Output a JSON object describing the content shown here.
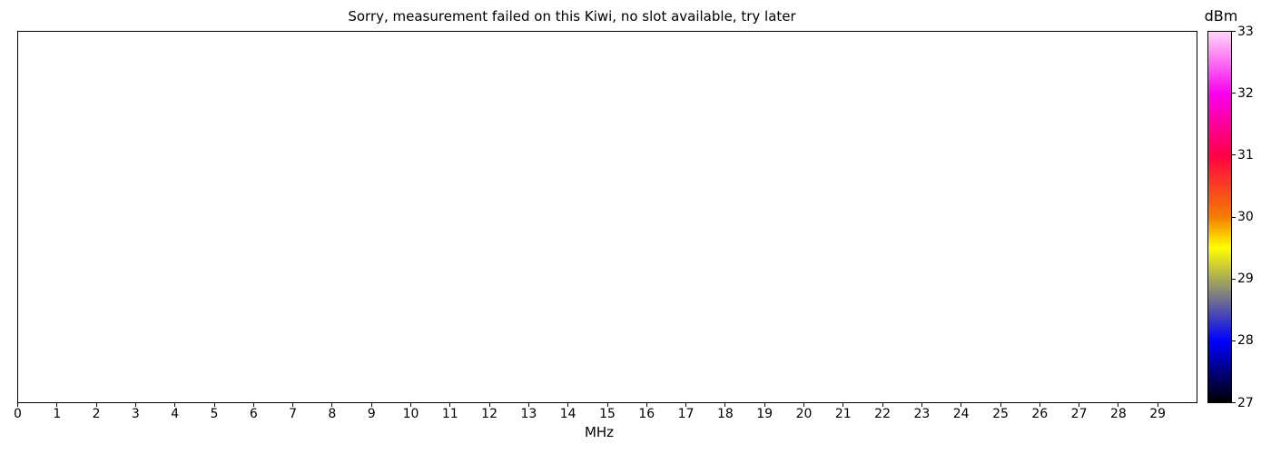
{
  "chart_data": {
    "type": "heatmap",
    "title": "Sorry, measurement failed on this Kiwi, no slot available, try later",
    "xlabel": "MHz",
    "xlim": [
      0,
      30
    ],
    "x_ticks": [
      0,
      1,
      2,
      3,
      4,
      5,
      6,
      7,
      8,
      9,
      10,
      11,
      12,
      13,
      14,
      15,
      16,
      17,
      18,
      19,
      20,
      21,
      22,
      23,
      24,
      25,
      26,
      27,
      28,
      29
    ],
    "grid": false,
    "series": [],
    "colorbar": {
      "label": "dBm",
      "min": 27,
      "max": 33,
      "ticks": [
        33,
        32,
        31,
        30,
        29,
        28,
        27
      ],
      "gradient_stops": [
        {
          "value": 33,
          "color": "#ffd6f8"
        },
        {
          "value": 32,
          "color": "#fa00f0"
        },
        {
          "value": 31,
          "color": "#ff0045"
        },
        {
          "value": 30,
          "color": "#f57d00"
        },
        {
          "value": 29.5,
          "color": "#ffff00"
        },
        {
          "value": 28,
          "color": "#0000ff"
        },
        {
          "value": 27,
          "color": "#000000"
        }
      ]
    }
  }
}
